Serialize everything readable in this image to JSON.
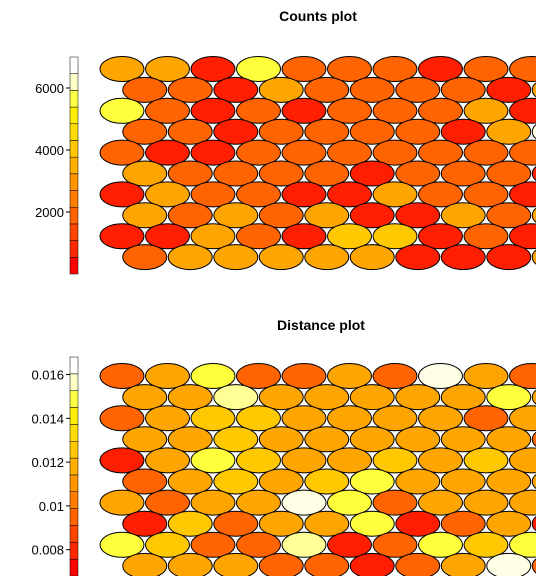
{
  "chart_data": [
    {
      "type": "heatmap",
      "title": "Counts plot",
      "colorbar_ticks": [
        "2000",
        "4000",
        "6000"
      ],
      "colorbar_tick_values": [
        2000,
        4000,
        6000
      ],
      "colorbar_range": [
        0,
        7000
      ],
      "colorbar_colors": [
        "#ff0000",
        "#ff2800",
        "#ff4600",
        "#ff6400",
        "#ff7d00",
        "#ff9600",
        "#ffaf00",
        "#ffc800",
        "#ffdc00",
        "#fff000",
        "#ffff46",
        "#ffffc8",
        "#ffffff"
      ],
      "rows": [
        [
          "#ffa500",
          "#ffa500",
          "#ff1e00",
          "#ffff3c",
          "#ff6400",
          "#ff6400",
          "#ff6400",
          "#ff1e00",
          "#ff6400",
          "#ff6400"
        ],
        [
          "#ff6400",
          "#ff6400",
          "#ff1e00",
          "#ffa500",
          "#ff6400",
          "#ff6400",
          "#ff6400",
          "#ff6400",
          "#ff1e00",
          "#ffa500"
        ],
        [
          "#ffff3c",
          "#ff6400",
          "#ff1e00",
          "#ff6400",
          "#ff1e00",
          "#ff6400",
          "#ff6400",
          "#ff6400",
          "#ffa500",
          "#ff1e00"
        ],
        [
          "#ff6400",
          "#ff6400",
          "#ff1e00",
          "#ff6400",
          "#ff6400",
          "#ff6400",
          "#ff6400",
          "#ff1e00",
          "#ffa500",
          "#ffffe6"
        ],
        [
          "#ff6400",
          "#ff1e00",
          "#ff1e00",
          "#ff6400",
          "#ff6400",
          "#ff6400",
          "#ff6400",
          "#ff6400",
          "#ff6400",
          "#ff6400"
        ],
        [
          "#ffa500",
          "#ff6400",
          "#ff6400",
          "#ff6400",
          "#ff6400",
          "#ff1e00",
          "#ff6400",
          "#ff6400",
          "#ff6400",
          "#ff1e00"
        ],
        [
          "#ff1e00",
          "#ffa500",
          "#ff6400",
          "#ff6400",
          "#ff1e00",
          "#ff1e00",
          "#ffa500",
          "#ff6400",
          "#ff6400",
          "#ff1e00"
        ],
        [
          "#ffa500",
          "#ff6400",
          "#ffa500",
          "#ff6400",
          "#ffa500",
          "#ff1e00",
          "#ff1e00",
          "#ffa500",
          "#ff6400",
          "#ffa500"
        ],
        [
          "#ff1e00",
          "#ff1e00",
          "#ffa500",
          "#ff6400",
          "#ff1e00",
          "#ffc800",
          "#ffc800",
          "#ff1e00",
          "#ff6400",
          "#ff1e00"
        ],
        [
          "#ff6400",
          "#ffa500",
          "#ffa500",
          "#ffa500",
          "#ffa500",
          "#ffa500",
          "#ff1e00",
          "#ff1e00",
          "#ff1e00",
          "#ffa500"
        ]
      ]
    },
    {
      "type": "heatmap",
      "title": "Distance plot",
      "colorbar_ticks": [
        "0.008",
        "0.01",
        "0.012",
        "0.014",
        "0.016"
      ],
      "colorbar_tick_values": [
        0.008,
        0.01,
        0.012,
        0.014,
        0.016
      ],
      "colorbar_range": [
        0.0068,
        0.0168
      ],
      "colorbar_colors": [
        "#ff0000",
        "#ff2800",
        "#ff4600",
        "#ff6400",
        "#ff7d00",
        "#ff9600",
        "#ffaf00",
        "#ffc800",
        "#ffdc00",
        "#fff000",
        "#ffff46",
        "#ffffc8",
        "#ffffff"
      ],
      "rows": [
        [
          "#ff6400",
          "#ffa500",
          "#ffff3c",
          "#ff6400",
          "#ff6400",
          "#ffa500",
          "#ff6400",
          "#ffffe6",
          "#ffa500",
          "#ff6400"
        ],
        [
          "#ffa500",
          "#ffa500",
          "#ffff96",
          "#ffa500",
          "#ffa500",
          "#ffa500",
          "#ffa500",
          "#ffa500",
          "#ffff3c",
          "#ffa500"
        ],
        [
          "#ff6400",
          "#ffa500",
          "#ffc800",
          "#ffc800",
          "#ffa500",
          "#ffa500",
          "#ffa500",
          "#ffa500",
          "#ff6400",
          "#ffa500"
        ],
        [
          "#ffa500",
          "#ffa500",
          "#ffc800",
          "#ffa500",
          "#ffa500",
          "#ffa500",
          "#ffa500",
          "#ffa500",
          "#ffa500",
          "#ff6400"
        ],
        [
          "#ff1e00",
          "#ffa500",
          "#ffff3c",
          "#ffc800",
          "#ffa500",
          "#ffa500",
          "#ffc800",
          "#ffa500",
          "#ffc800",
          "#ffa500"
        ],
        [
          "#ff6400",
          "#ffa500",
          "#ffc800",
          "#ffa500",
          "#ffc800",
          "#ffff3c",
          "#ffa500",
          "#ffa500",
          "#ffa500",
          "#ffa500"
        ],
        [
          "#ffa500",
          "#ff6400",
          "#ffa500",
          "#ffa500",
          "#ffffe6",
          "#ffff3c",
          "#ff6400",
          "#ffa500",
          "#ffa500",
          "#ffa500"
        ],
        [
          "#ff1e00",
          "#ffc800",
          "#ff6400",
          "#ffa500",
          "#ffa500",
          "#ffff3c",
          "#ff1e00",
          "#ff6400",
          "#ffa500",
          "#ff1e00"
        ],
        [
          "#ffff3c",
          "#ffc800",
          "#ff6400",
          "#ff6400",
          "#ffff96",
          "#ff1e00",
          "#ff6400",
          "#ffff3c",
          "#ffc800",
          "#ffff3c"
        ],
        [
          "#ffa500",
          "#ffa500",
          "#ffa500",
          "#ff6400",
          "#ff6400",
          "#ff1e00",
          "#ff6400",
          "#ffa500",
          "#ffffe6",
          "#ff6400"
        ]
      ]
    }
  ]
}
